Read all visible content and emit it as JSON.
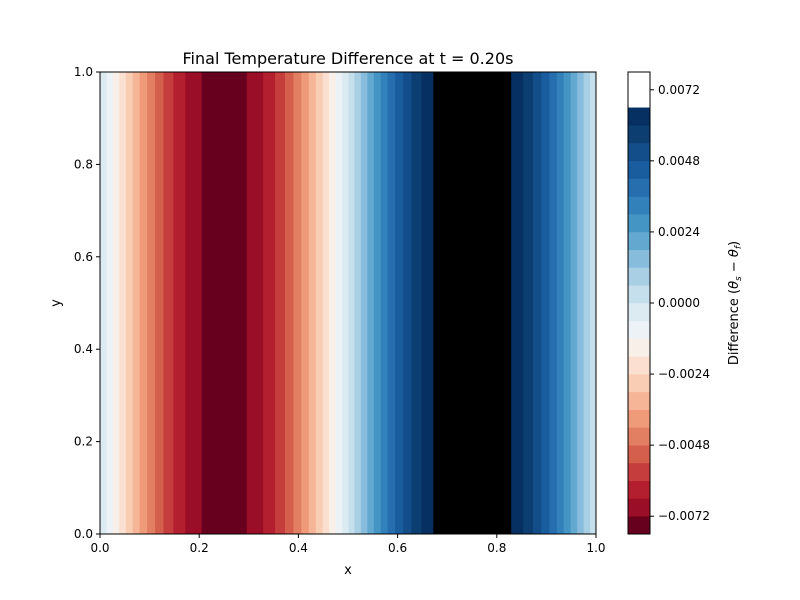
{
  "chart_data": {
    "type": "heatmap",
    "subtype": "filled-contour",
    "title": "Final Temperature Difference at t = 0.20s",
    "xlabel": "x",
    "ylabel": "y",
    "xlim": [
      0,
      1
    ],
    "ylim": [
      0,
      1
    ],
    "xticks": [
      "0.0",
      "0.2",
      "0.4",
      "0.6",
      "0.8",
      "1.0"
    ],
    "yticks": [
      "0.0",
      "0.2",
      "0.4",
      "0.6",
      "0.8",
      "1.0"
    ],
    "colorbar": {
      "label_prefix": "Difference (",
      "label_math": "θ",
      "sub_s": "s",
      "label_minus": " − ",
      "sub_f": "f",
      "label_suffix": ")",
      "range": [
        -0.0078,
        0.0078
      ],
      "ticks": [
        "−0.0072",
        "−0.0048",
        "−0.0024",
        "0.0000",
        "0.0024",
        "0.0048",
        "0.0072"
      ],
      "tick_values": [
        -0.0072,
        -0.0048,
        -0.0024,
        0.0,
        0.0024,
        0.0048,
        0.0072
      ],
      "levels": [
        -0.0078,
        -0.0072,
        -0.0066,
        -0.006,
        -0.0054,
        -0.0048,
        -0.0042,
        -0.0036,
        -0.003,
        -0.0024,
        -0.0018,
        -0.0012,
        -0.0006,
        0.0,
        0.0006,
        0.0012,
        0.0018,
        0.0024,
        0.003,
        0.0036,
        0.0042,
        0.0048,
        0.0054,
        0.006,
        0.0066,
        0.0072,
        0.0078
      ],
      "colors": [
        "#67001f",
        "#9b0e27",
        "#b31f2e",
        "#c53d3c",
        "#d55f4d",
        "#e27e62",
        "#ef9b7a",
        "#f6b596",
        "#f9ccb4",
        "#fbe0d1",
        "#f9efe9",
        "#ecf2f5",
        "#dceaf2",
        "#c6dfed",
        "#a8cfe4",
        "#88bcdc",
        "#63a8cf",
        "#4595c4",
        "#3381ba",
        "#266eae",
        "#1a5d9f",
        "#134e8a",
        "#0c3e72",
        "#053061"
      ]
    },
    "field": {
      "function": "-amplitude * sin(2*pi*x)",
      "amplitude": 0.0075
    }
  }
}
